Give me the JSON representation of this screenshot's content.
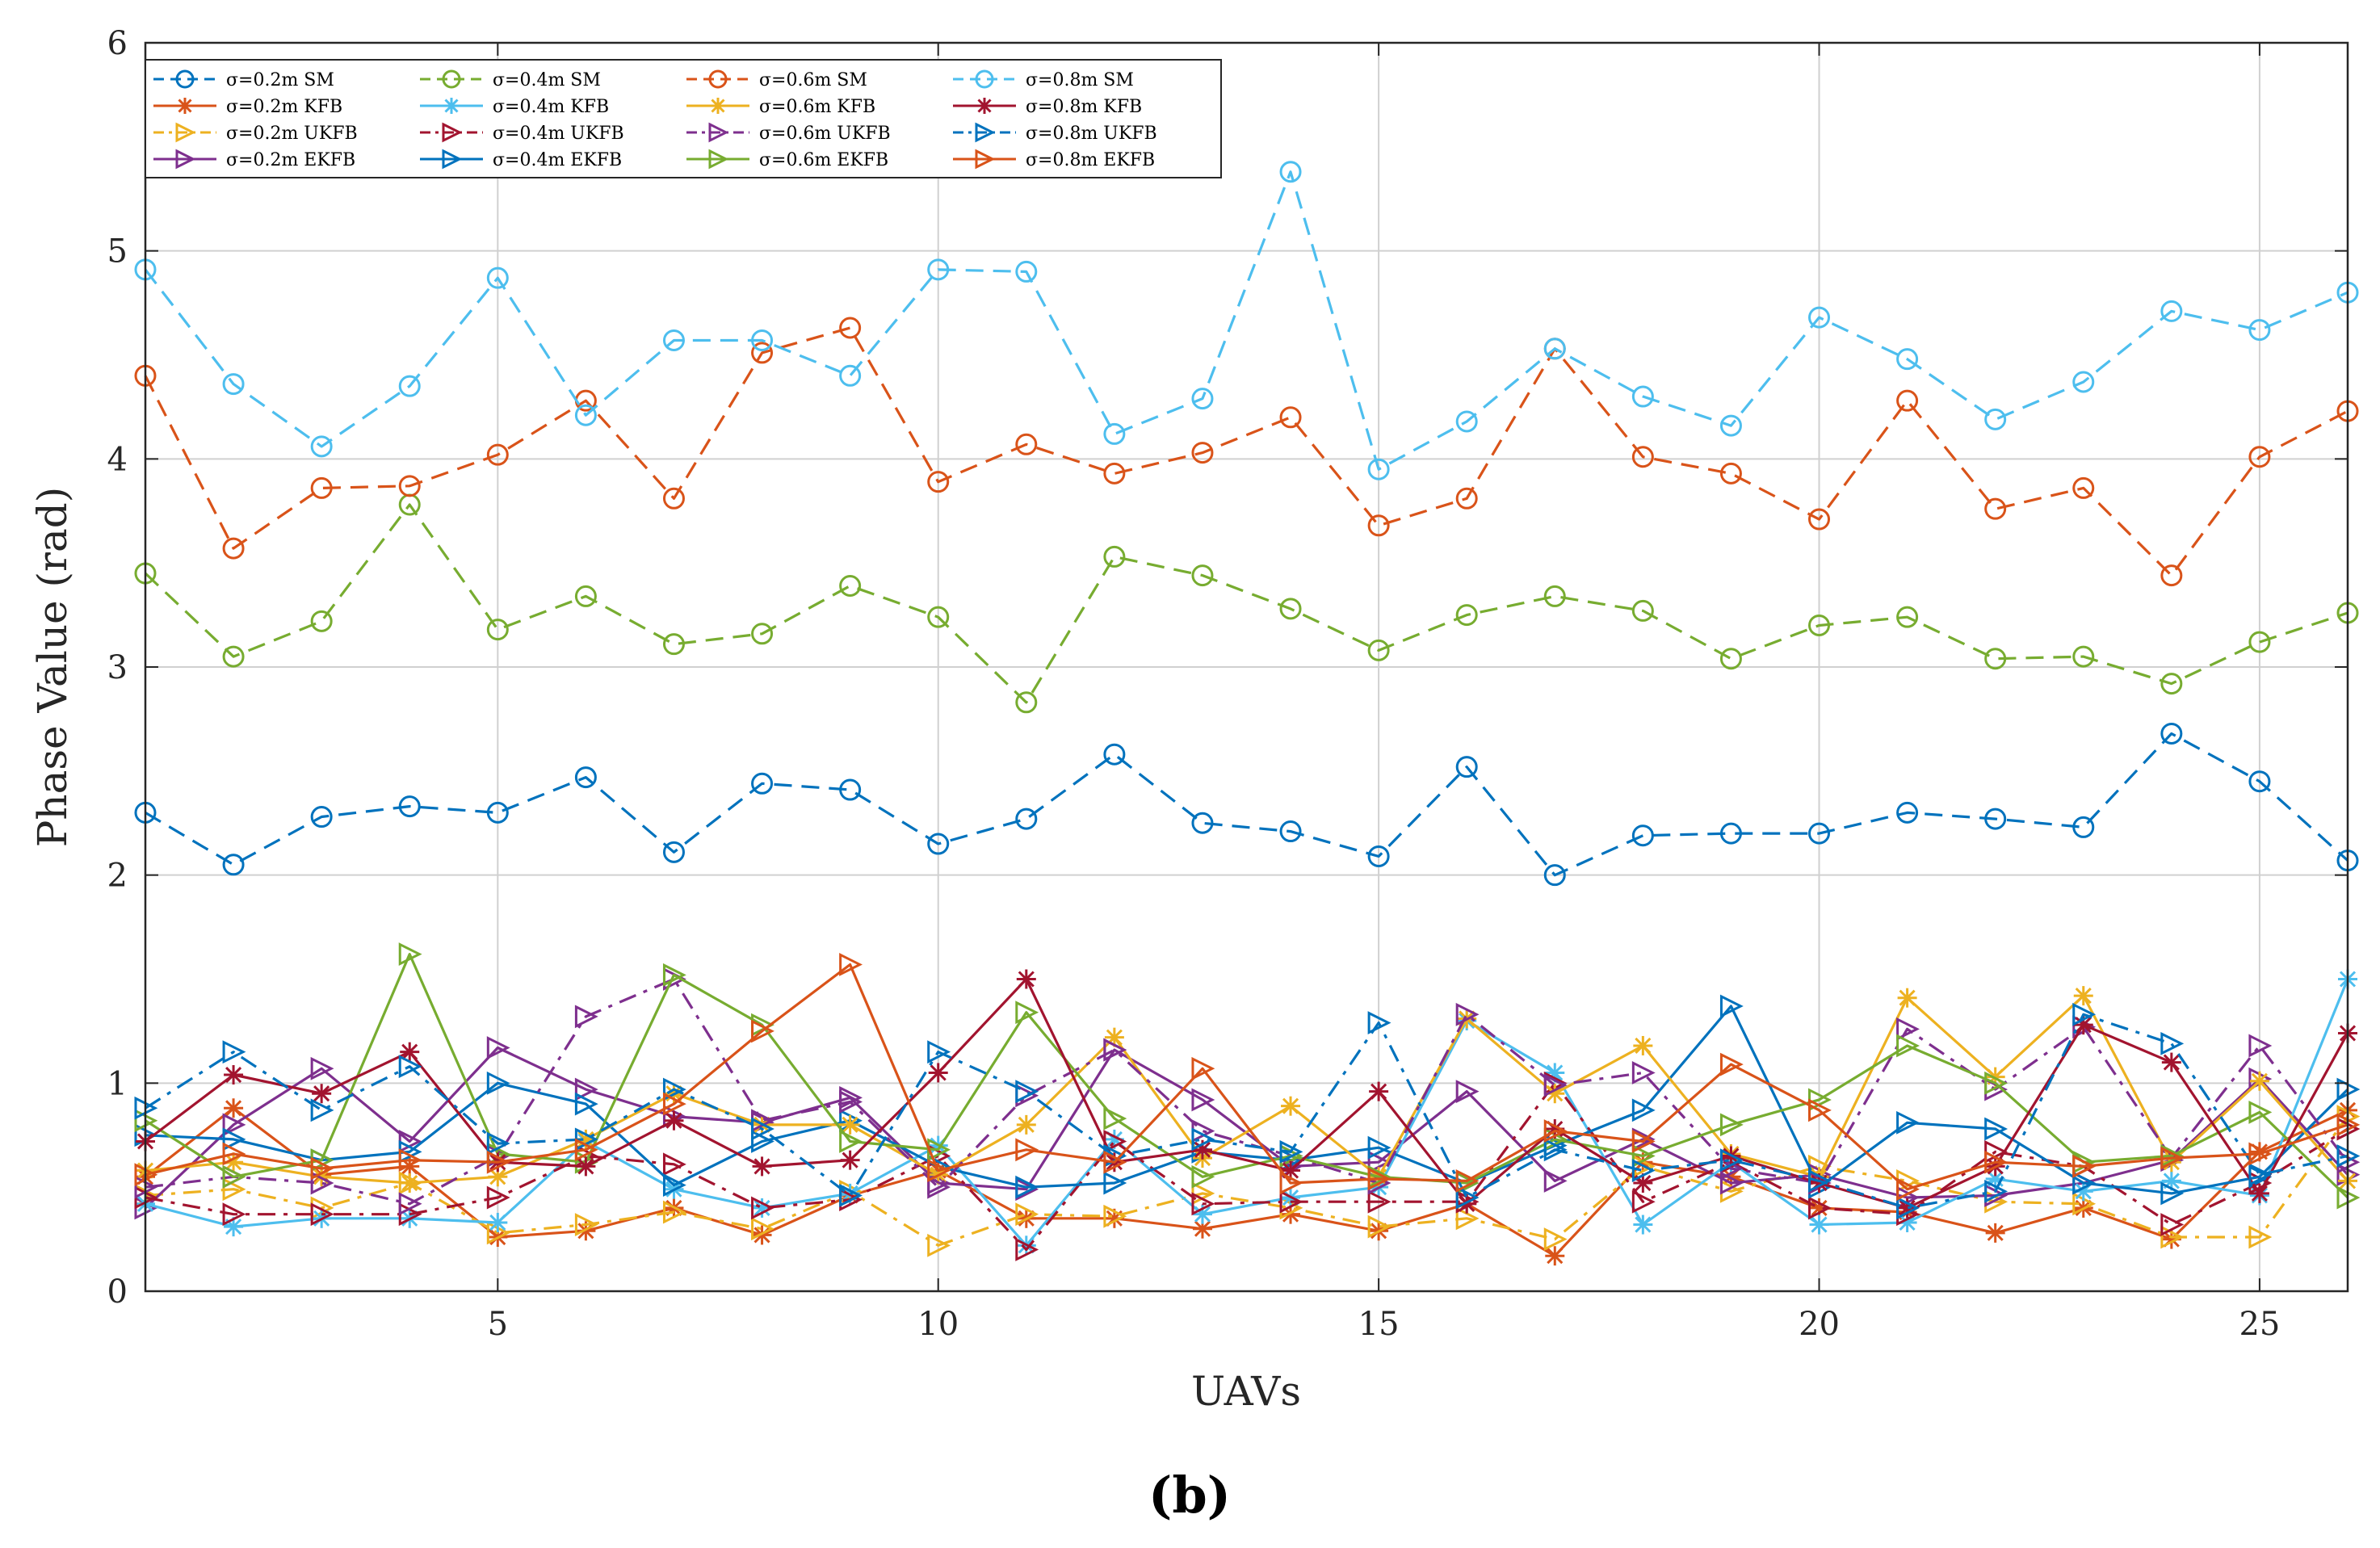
{
  "chart_data": {
    "type": "line",
    "title": "",
    "panel_label": "(b)",
    "xlabel": "UAVs",
    "ylabel": "Phase Value (rad)",
    "xlim": [
      1,
      26
    ],
    "ylim": [
      0,
      6
    ],
    "xticks": [
      5,
      10,
      15,
      20,
      25
    ],
    "xtick_labels": [
      "5",
      "10",
      "15",
      "20",
      "25"
    ],
    "yticks": [
      0,
      1,
      2,
      3,
      4,
      5,
      6
    ],
    "ytick_labels": [
      "0",
      "1",
      "2",
      "3",
      "4",
      "5",
      "6"
    ],
    "grid": true,
    "legend_position": "top-left",
    "legend_columns": 4,
    "x": [
      1,
      2,
      3,
      4,
      5,
      6,
      7,
      8,
      9,
      10,
      11,
      12,
      13,
      14,
      15,
      16,
      17,
      18,
      19,
      20,
      21,
      22,
      23,
      24,
      25,
      26
    ],
    "series": [
      {
        "name": "σ=0.2m SM",
        "color": "#0072BD",
        "dash": "dashed",
        "marker": "circle",
        "values": [
          2.3,
          2.05,
          2.28,
          2.33,
          2.3,
          2.47,
          2.11,
          2.44,
          2.41,
          2.15,
          2.27,
          2.58,
          2.25,
          2.21,
          2.09,
          2.52,
          2.0,
          2.19,
          2.2,
          2.2,
          2.3,
          2.27,
          2.23,
          2.68,
          2.45,
          2.07
        ]
      },
      {
        "name": "σ=0.2m KFB",
        "color": "#D95319",
        "dash": "solid",
        "marker": "asterisk",
        "values": [
          0.55,
          0.88,
          0.56,
          0.6,
          0.26,
          0.29,
          0.4,
          0.27,
          0.46,
          0.58,
          0.35,
          0.35,
          0.3,
          0.37,
          0.29,
          0.42,
          0.17,
          0.62,
          0.55,
          0.4,
          0.38,
          0.28,
          0.4,
          0.25,
          0.67,
          0.87
        ]
      },
      {
        "name": "σ=0.2m UKFB",
        "color": "#EDB120",
        "dash": "dashdot",
        "marker": "triangle-right",
        "values": [
          0.46,
          0.49,
          0.4,
          0.52,
          0.28,
          0.32,
          0.38,
          0.3,
          0.48,
          0.22,
          0.37,
          0.36,
          0.47,
          0.4,
          0.31,
          0.35,
          0.25,
          0.6,
          0.48,
          0.6,
          0.53,
          0.43,
          0.42,
          0.26,
          0.26,
          0.84
        ]
      },
      {
        "name": "σ=0.2m EKFB",
        "color": "#7E2F8E",
        "dash": "solid",
        "marker": "triangle-right",
        "values": [
          0.4,
          0.8,
          1.07,
          0.72,
          1.17,
          0.97,
          0.84,
          0.81,
          0.93,
          0.52,
          0.49,
          1.16,
          0.92,
          0.6,
          0.62,
          0.96,
          0.53,
          0.73,
          0.52,
          0.56,
          0.45,
          0.46,
          0.52,
          0.63,
          1.02,
          0.56
        ]
      },
      {
        "name": "σ=0.4m SM",
        "color": "#77AC30",
        "dash": "dashed",
        "marker": "circle",
        "values": [
          3.45,
          3.05,
          3.22,
          3.78,
          3.18,
          3.34,
          3.11,
          3.16,
          3.39,
          3.24,
          2.83,
          3.53,
          3.44,
          3.28,
          3.08,
          3.25,
          3.34,
          3.27,
          3.04,
          3.2,
          3.24,
          3.04,
          3.05,
          2.92,
          3.12,
          3.26
        ]
      },
      {
        "name": "σ=0.4m KFB",
        "color": "#4DBEEE",
        "dash": "solid",
        "marker": "asterisk",
        "values": [
          0.42,
          0.31,
          0.35,
          0.35,
          0.33,
          0.72,
          0.49,
          0.4,
          0.47,
          0.7,
          0.22,
          0.73,
          0.37,
          0.45,
          0.5,
          1.3,
          1.05,
          0.32,
          0.62,
          0.32,
          0.33,
          0.54,
          0.48,
          0.53,
          0.46,
          1.5
        ]
      },
      {
        "name": "σ=0.4m UKFB",
        "color": "#A2142F",
        "dash": "dashdot",
        "marker": "triangle-right",
        "values": [
          0.45,
          0.37,
          0.37,
          0.37,
          0.45,
          0.65,
          0.61,
          0.4,
          0.44,
          0.65,
          0.2,
          0.72,
          0.42,
          0.43,
          0.43,
          0.43,
          1.0,
          0.43,
          0.62,
          0.4,
          0.37,
          0.67,
          0.6,
          0.32,
          0.52,
          0.78
        ]
      },
      {
        "name": "σ=0.4m EKFB",
        "color": "#0072BD",
        "dash": "solid",
        "marker": "triangle-right",
        "values": [
          0.75,
          0.73,
          0.63,
          0.67,
          1.0,
          0.9,
          0.51,
          0.72,
          0.82,
          0.6,
          0.5,
          0.52,
          0.67,
          0.63,
          0.69,
          0.52,
          0.7,
          0.87,
          1.37,
          0.5,
          0.81,
          0.78,
          0.52,
          0.47,
          0.55,
          0.97
        ]
      },
      {
        "name": "σ=0.6m SM",
        "color": "#D95319",
        "dash": "dashed",
        "marker": "circle",
        "values": [
          4.4,
          3.57,
          3.86,
          3.87,
          4.02,
          4.28,
          3.81,
          4.51,
          4.63,
          3.89,
          4.07,
          3.93,
          4.03,
          4.2,
          3.68,
          3.81,
          4.53,
          4.01,
          3.93,
          3.71,
          4.28,
          3.76,
          3.86,
          3.44,
          4.01,
          4.23
        ]
      },
      {
        "name": "σ=0.6m KFB",
        "color": "#EDB120",
        "dash": "solid",
        "marker": "asterisk",
        "values": [
          0.58,
          0.62,
          0.55,
          0.52,
          0.55,
          0.73,
          0.95,
          0.8,
          0.8,
          0.56,
          0.8,
          1.22,
          0.64,
          0.89,
          0.55,
          1.31,
          0.95,
          1.18,
          0.66,
          0.55,
          1.41,
          1.03,
          1.42,
          0.62,
          1.01,
          0.53
        ]
      },
      {
        "name": "σ=0.6m UKFB",
        "color": "#7E2F8E",
        "dash": "dashdot",
        "marker": "triangle-right",
        "values": [
          0.5,
          0.55,
          0.52,
          0.42,
          0.65,
          1.32,
          1.5,
          0.82,
          0.91,
          0.5,
          0.94,
          1.16,
          0.77,
          0.65,
          0.52,
          1.33,
          0.99,
          1.05,
          0.59,
          0.52,
          1.26,
          0.97,
          1.27,
          0.64,
          1.18,
          0.62
        ]
      },
      {
        "name": "σ=0.6m EKFB",
        "color": "#77AC30",
        "dash": "solid",
        "marker": "triangle-right",
        "values": [
          0.82,
          0.55,
          0.63,
          1.62,
          0.66,
          0.62,
          1.52,
          1.28,
          0.72,
          0.68,
          1.34,
          0.83,
          0.55,
          0.65,
          0.55,
          0.52,
          0.73,
          0.65,
          0.8,
          0.92,
          1.18,
          1.0,
          0.62,
          0.65,
          0.86,
          0.45
        ]
      },
      {
        "name": "σ=0.8m SM",
        "color": "#4DBEEE",
        "dash": "dashed",
        "marker": "circle",
        "values": [
          4.91,
          4.36,
          4.06,
          4.35,
          4.87,
          4.21,
          4.57,
          4.57,
          4.4,
          4.91,
          4.9,
          4.12,
          4.29,
          5.38,
          3.95,
          4.18,
          4.53,
          4.3,
          4.16,
          4.68,
          4.48,
          4.19,
          4.37,
          4.71,
          4.62,
          4.8
        ]
      },
      {
        "name": "σ=0.8m KFB",
        "color": "#A2142F",
        "dash": "solid",
        "marker": "asterisk",
        "values": [
          0.72,
          1.04,
          0.95,
          1.15,
          0.62,
          0.6,
          0.82,
          0.6,
          0.63,
          1.05,
          1.5,
          0.62,
          0.68,
          0.58,
          0.96,
          0.42,
          0.78,
          0.52,
          0.65,
          0.52,
          0.4,
          0.6,
          1.28,
          1.1,
          0.47,
          1.24
        ]
      },
      {
        "name": "σ=0.8m UKFB",
        "color": "#0072BD",
        "dash": "dashdot",
        "marker": "triangle-right",
        "values": [
          0.88,
          1.15,
          0.87,
          1.08,
          0.71,
          0.73,
          0.97,
          0.78,
          0.46,
          1.15,
          0.96,
          0.65,
          0.73,
          0.67,
          1.29,
          0.45,
          0.68,
          0.58,
          0.63,
          0.53,
          0.4,
          0.48,
          1.33,
          1.19,
          0.56,
          0.65
        ]
      },
      {
        "name": "σ=0.8m EKFB",
        "color": "#D95319",
        "dash": "solid",
        "marker": "triangle-right",
        "values": [
          0.56,
          0.66,
          0.59,
          0.63,
          0.62,
          0.68,
          0.9,
          1.25,
          1.57,
          0.58,
          0.68,
          0.62,
          1.07,
          0.52,
          0.54,
          0.53,
          0.77,
          0.72,
          1.09,
          0.87,
          0.49,
          0.62,
          0.6,
          0.64,
          0.66,
          0.8
        ]
      }
    ]
  }
}
